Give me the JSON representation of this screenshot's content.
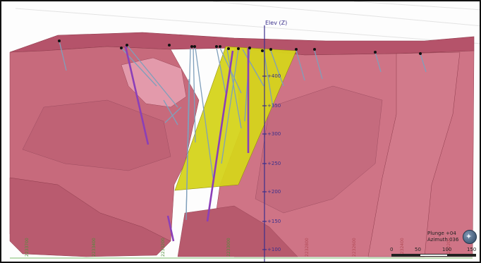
{
  "viewer": {
    "elevation_axis": {
      "title": "Elev (Z)",
      "ticks": [
        "+400",
        "+350",
        "+300",
        "+250",
        "+200",
        "+150",
        "+100"
      ]
    },
    "easting_labels_green": [
      "2233700",
      "2233400",
      "2233200",
      "2233000"
    ],
    "easting_labels_red": [
      "2232800",
      "2232600",
      "2232400",
      "2232200"
    ],
    "orientation": {
      "plunge": "Plunge +04",
      "azimuth": "Azimuth 036"
    },
    "scale_bar": {
      "labels": [
        "0",
        "50",
        "100",
        "150"
      ]
    },
    "colors": {
      "solid_fill": "#c35f71",
      "solid_edge": "#8e3b4c",
      "vein_plane": "#d6d41c",
      "drillhole_blue": "#7f9fbb",
      "drillhole_purple": "#8b3fb8",
      "axis": "#3a2f8c"
    },
    "compass_icon": "compass-icon"
  }
}
